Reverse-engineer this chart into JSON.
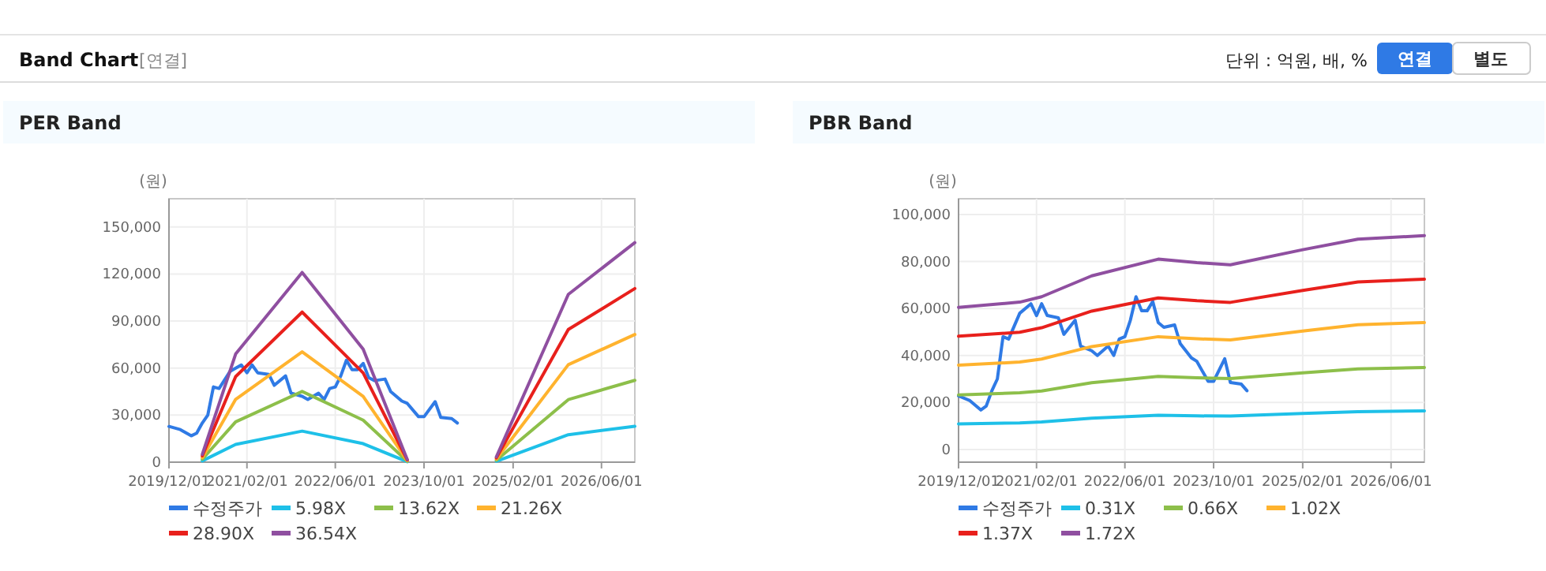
{
  "chart_data": [
    {
      "type": "line",
      "title": "PER Band",
      "ylabel": "(원)",
      "annotations": [
        "Band Chart",
        "[연결]",
        "단위 : 억원, 배, %",
        "연결",
        "별도"
      ],
      "xlim": [
        "2019-12-01",
        "2026-12-01"
      ],
      "xticks": [
        {
          "value": "2019-12-01",
          "label": "2019/12/01"
        },
        {
          "value": "2021-02-01",
          "label": "2021/02/01"
        },
        {
          "value": "2022-06-01",
          "label": "2022/06/01"
        },
        {
          "value": "2023-10-01",
          "label": "2023/10/01"
        },
        {
          "value": "2025-02-01",
          "label": "2025/02/01"
        },
        {
          "value": "2026-06-01",
          "label": "2026/06/01"
        }
      ],
      "ylim": [
        0,
        168000
      ],
      "yticks": [
        0,
        {
          "value": 30000,
          "label": "30,000"
        },
        {
          "value": 60000,
          "label": "60,000"
        },
        {
          "value": 90000,
          "label": "90,000"
        },
        {
          "value": 120000,
          "label": "120,000"
        },
        {
          "value": 150000,
          "label": "150,000"
        }
      ],
      "grid": true,
      "legend": "bottom",
      "series": [
        {
          "name": "수정주가",
          "color": "#2f7ae5",
          "x": [
            "2019-12",
            "2020-02",
            "2020-04",
            "2020-05",
            "2020-06",
            "2020-07",
            "2020-08",
            "2020-09",
            "2020-11",
            "2021-01",
            "2021-02",
            "2021-03",
            "2021-04",
            "2021-06",
            "2021-07",
            "2021-09",
            "2021-10",
            "2021-12",
            "2022-01",
            "2022-03",
            "2022-04",
            "2022-05",
            "2022-06",
            "2022-07",
            "2022-08",
            "2022-09",
            "2022-10",
            "2022-11",
            "2022-12",
            "2023-01",
            "2023-03",
            "2023-04",
            "2023-06",
            "2023-07",
            "2023-09",
            "2023-10",
            "2023-12",
            "2024-01",
            "2024-03",
            "2024-04"
          ],
          "values": [
            22800,
            20800,
            16800,
            18500,
            25000,
            30000,
            48000,
            47000,
            58000,
            62000,
            57000,
            62000,
            57000,
            56000,
            49000,
            55000,
            44000,
            42000,
            40000,
            44000,
            40000,
            47000,
            48000,
            55000,
            65000,
            59000,
            59000,
            63000,
            54000,
            52000,
            53000,
            45000,
            39000,
            37500,
            29000,
            29000,
            38600,
            28500,
            27800,
            25000
          ]
        },
        {
          "name": "5.98X",
          "color": "#1ec0e8",
          "x": [
            "2020-06",
            "2020-12",
            "2021-12",
            "2022-11",
            "2023-07",
            "2024-03",
            "2024-11",
            "2025-12",
            "2026-12"
          ],
          "values": [
            800,
            11300,
            19800,
            11800,
            300,
            null,
            600,
            17500,
            22900
          ]
        },
        {
          "name": "13.62X",
          "color": "#8dbf4a",
          "x": [
            "2020-06",
            "2020-12",
            "2021-12",
            "2022-11",
            "2023-07",
            "2024-03",
            "2024-11",
            "2025-12",
            "2026-12"
          ],
          "values": [
            1900,
            25700,
            45100,
            26800,
            600,
            null,
            1300,
            39900,
            52200
          ]
        },
        {
          "name": "21.26X",
          "color": "#ffb32e",
          "x": [
            "2020-06",
            "2020-12",
            "2021-12",
            "2022-11",
            "2023-07",
            "2024-03",
            "2024-11",
            "2025-12",
            "2026-12"
          ],
          "values": [
            2900,
            40100,
            70400,
            41900,
            1000,
            null,
            2000,
            62200,
            81400
          ]
        },
        {
          "name": "28.90X",
          "color": "#e8201c",
          "x": [
            "2020-06",
            "2020-12",
            "2021-12",
            "2022-11",
            "2023-07",
            "2024-03",
            "2024-11",
            "2025-12",
            "2026-12"
          ],
          "values": [
            4000,
            54600,
            95700,
            56900,
            1400,
            null,
            2700,
            84600,
            110700
          ]
        },
        {
          "name": "36.54X",
          "color": "#8f4fa0",
          "x": [
            "2020-06",
            "2020-12",
            "2021-12",
            "2022-11",
            "2023-07",
            "2024-03",
            "2024-11",
            "2025-12",
            "2026-12"
          ],
          "values": [
            5000,
            69000,
            121000,
            72000,
            1700,
            null,
            3400,
            107000,
            140000
          ]
        }
      ]
    },
    {
      "type": "line",
      "title": "PBR Band",
      "ylabel": "(원)",
      "xlim": [
        "2019-12-01",
        "2026-12-01"
      ],
      "xticks": [
        {
          "value": "2019-12-01",
          "label": "2019/12/01"
        },
        {
          "value": "2021-02-01",
          "label": "2021/02/01"
        },
        {
          "value": "2022-06-01",
          "label": "2022/06/01"
        },
        {
          "value": "2023-10-01",
          "label": "2023/10/01"
        },
        {
          "value": "2025-02-01",
          "label": "2025/02/01"
        },
        {
          "value": "2026-06-01",
          "label": "2026/06/01"
        }
      ],
      "ylim": [
        -5400,
        106700
      ],
      "yticks": [
        0,
        {
          "value": 20000,
          "label": "20,000"
        },
        {
          "value": 40000,
          "label": "40,000"
        },
        {
          "value": 60000,
          "label": "60,000"
        },
        {
          "value": 80000,
          "label": "80,000"
        },
        {
          "value": 100000,
          "label": "100,000"
        }
      ],
      "grid": true,
      "legend": "bottom",
      "series": [
        {
          "name": "수정주가",
          "color": "#2f7ae5",
          "x": [
            "2019-12",
            "2020-02",
            "2020-04",
            "2020-05",
            "2020-06",
            "2020-07",
            "2020-08",
            "2020-09",
            "2020-11",
            "2021-01",
            "2021-02",
            "2021-03",
            "2021-04",
            "2021-06",
            "2021-07",
            "2021-09",
            "2021-10",
            "2021-12",
            "2022-01",
            "2022-03",
            "2022-04",
            "2022-05",
            "2022-06",
            "2022-07",
            "2022-08",
            "2022-09",
            "2022-10",
            "2022-11",
            "2022-12",
            "2023-01",
            "2023-03",
            "2023-04",
            "2023-06",
            "2023-07",
            "2023-09",
            "2023-10",
            "2023-12",
            "2024-01",
            "2024-03",
            "2024-04"
          ],
          "values": [
            22800,
            20800,
            16800,
            18500,
            25000,
            30000,
            48000,
            47000,
            58000,
            62000,
            57000,
            62000,
            57000,
            56000,
            49000,
            55000,
            44000,
            42000,
            40000,
            44000,
            40000,
            47000,
            48000,
            55000,
            65000,
            59000,
            59000,
            63000,
            54000,
            52000,
            53000,
            45000,
            39000,
            37500,
            29000,
            29000,
            38600,
            28500,
            27800,
            25000
          ]
        },
        {
          "name": "0.31X",
          "color": "#1ec0e8",
          "x": [
            "2019-12",
            "2020-11",
            "2021-03",
            "2021-12",
            "2022-12",
            "2023-07",
            "2024-01",
            "2025-02",
            "2025-12",
            "2026-12"
          ],
          "values": [
            10900,
            11300,
            11700,
            13300,
            14600,
            14300,
            14200,
            15300,
            16100,
            16400
          ]
        },
        {
          "name": "0.66X",
          "color": "#8dbf4a",
          "x": [
            "2019-12",
            "2020-11",
            "2021-03",
            "2021-12",
            "2022-12",
            "2023-07",
            "2024-01",
            "2025-02",
            "2025-12",
            "2026-12"
          ],
          "values": [
            23200,
            24100,
            24900,
            28400,
            31100,
            30500,
            30200,
            32600,
            34300,
            34900
          ]
        },
        {
          "name": "1.02X",
          "color": "#ffb32e",
          "x": [
            "2019-12",
            "2020-11",
            "2021-03",
            "2021-12",
            "2022-12",
            "2023-07",
            "2024-01",
            "2025-02",
            "2025-12",
            "2026-12"
          ],
          "values": [
            35900,
            37200,
            38500,
            43800,
            48000,
            47100,
            46600,
            50400,
            53100,
            54000
          ]
        },
        {
          "name": "1.37X",
          "color": "#e8201c",
          "x": [
            "2019-12",
            "2020-11",
            "2021-03",
            "2021-12",
            "2022-12",
            "2023-07",
            "2024-01",
            "2025-02",
            "2025-12",
            "2026-12"
          ],
          "values": [
            48200,
            49900,
            51800,
            58900,
            64500,
            63300,
            62600,
            67700,
            71300,
            72500
          ]
        },
        {
          "name": "1.72X",
          "color": "#8f4fa0",
          "x": [
            "2019-12",
            "2020-11",
            "2021-03",
            "2021-12",
            "2022-12",
            "2023-07",
            "2024-01",
            "2025-02",
            "2025-12",
            "2026-12"
          ],
          "values": [
            60500,
            62700,
            65000,
            73900,
            81000,
            79500,
            78600,
            85000,
            89500,
            91000
          ]
        }
      ]
    }
  ]
}
